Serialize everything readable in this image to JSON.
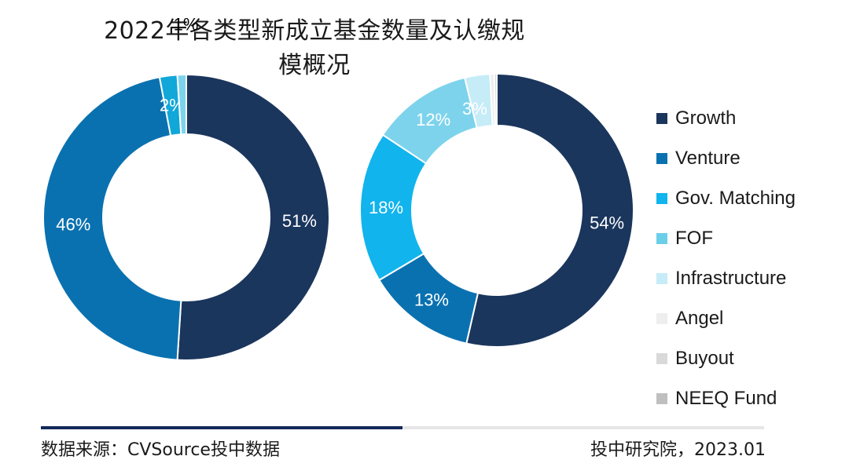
{
  "title": "2022年各类型新成立基金数量及认缴规模概况",
  "source": "数据来源：CVSource投中数据",
  "credit": "投中研究院，2023.01",
  "chart_data": [
    {
      "type": "donut",
      "slices": [
        {
          "name": "Growth",
          "value": 51,
          "label": "51%",
          "color": "#1b365d"
        },
        {
          "name": "Venture",
          "value": 46,
          "label": "46%",
          "color": "#0a71b0"
        },
        {
          "name": "Gov. Matching",
          "value": 2,
          "label": "2%",
          "color": "#11a7d8"
        },
        {
          "name": "FOF",
          "value": 1,
          "label": "1%",
          "color": "#7dd3ec"
        }
      ]
    },
    {
      "type": "donut",
      "slices": [
        {
          "name": "Growth",
          "value": 54,
          "label": "54%",
          "color": "#1b365d"
        },
        {
          "name": "Venture",
          "value": 13,
          "label": "13%",
          "color": "#0a71b0"
        },
        {
          "name": "Gov. Matching",
          "value": 18,
          "label": "18%",
          "color": "#11b4ec"
        },
        {
          "name": "FOF",
          "value": 12,
          "label": "12%",
          "color": "#7dd3ec"
        },
        {
          "name": "Infrastructure",
          "value": 3,
          "label": "3%",
          "color": "#c5ecf7"
        },
        {
          "name": "Angel",
          "value": 0.5,
          "label": "",
          "color": "#eeeeee"
        },
        {
          "name": "Buyout",
          "value": 0.3,
          "label": "",
          "color": "#d9d9d9"
        }
      ]
    }
  ],
  "legend": [
    {
      "label": "Growth",
      "color": "#1b365d"
    },
    {
      "label": "Venture",
      "color": "#0a71b0"
    },
    {
      "label": "Gov. Matching",
      "color": "#11b4ec"
    },
    {
      "label": "FOF",
      "color": "#6ccfe9"
    },
    {
      "label": "Infrastructure",
      "color": "#c5ecf7"
    },
    {
      "label": "Angel",
      "color": "#eeeeee"
    },
    {
      "label": "Buyout",
      "color": "#d9d9d9"
    },
    {
      "label": "NEEQ Fund",
      "color": "#bfbfbf"
    }
  ]
}
